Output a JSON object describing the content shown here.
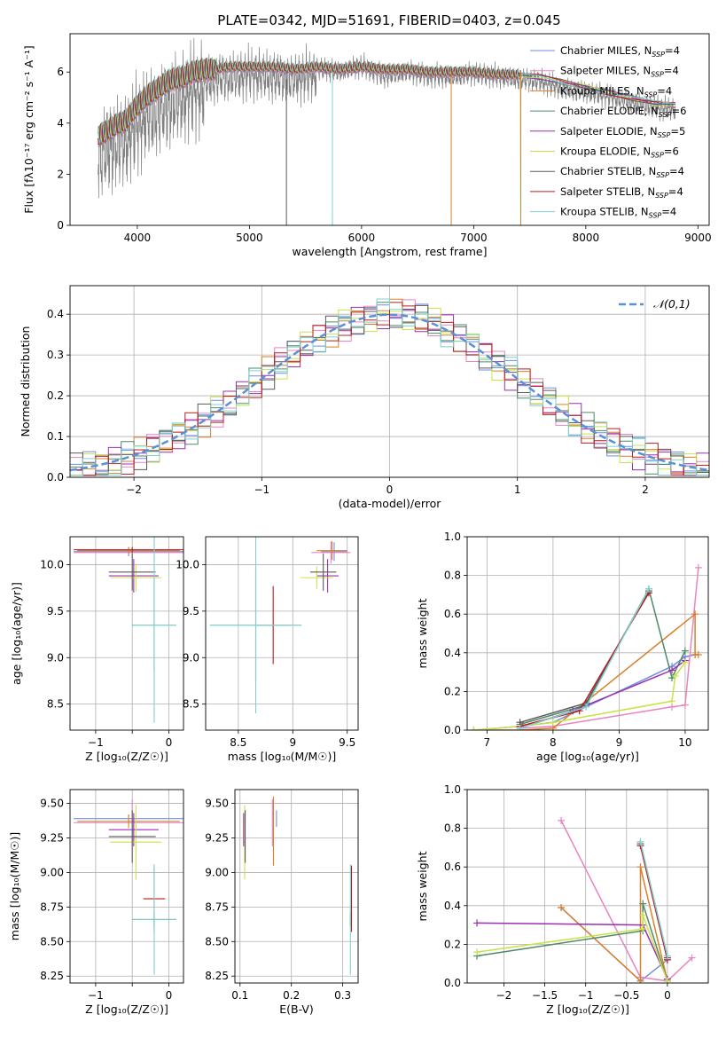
{
  "figure": {
    "title": "PLATE=0342, MJD=51691, FIBERID=0403, z=0.045"
  },
  "models": [
    {
      "name": "Chabrier MILES",
      "nssp": "4",
      "color": "#6f8fe0"
    },
    {
      "name": "Salpeter MILES",
      "nssp": "4",
      "color": "#e884c0"
    },
    {
      "name": "Kroupa MILES",
      "nssp": "4",
      "color": "#d9802a"
    },
    {
      "name": "Chabrier ELODIE",
      "nssp": "6",
      "color": "#4d8a68"
    },
    {
      "name": "Salpeter ELODIE",
      "nssp": "5",
      "color": "#9b2fb0"
    },
    {
      "name": "Kroupa ELODIE",
      "nssp": "6",
      "color": "#c9e24a"
    },
    {
      "name": "Chabrier STELIB",
      "nssp": "4",
      "color": "#5a5a5a"
    },
    {
      "name": "Salpeter STELIB",
      "nssp": "4",
      "color": "#b81c1c"
    },
    {
      "name": "Kroupa STELIB",
      "nssp": "4",
      "color": "#7fd0cc"
    }
  ],
  "chart_data": [
    {
      "id": "spectrum",
      "type": "line",
      "xlabel": "wavelength [Angstrom, rest frame]",
      "ylabel": "Flux [fλ10⁻¹⁷ erg cm⁻² s⁻¹ A⁻¹]",
      "xlim": [
        3400,
        9100
      ],
      "ylim": [
        0,
        7.5
      ],
      "xticks": [
        4000,
        5000,
        6000,
        7000,
        8000,
        9000
      ],
      "yticks": [
        0,
        2,
        4,
        6
      ],
      "grid": false,
      "legend": "right",
      "data_color": "#808080",
      "data_spectrum": {
        "x": [
          3650,
          3700,
          3800,
          3900,
          4000,
          4100,
          4200,
          4300,
          4400,
          4500,
          4600,
          4700,
          4800,
          4900,
          5000,
          5200,
          5400,
          5600,
          5800,
          6000,
          6200,
          6400,
          6600,
          6800,
          7000,
          7200,
          7400,
          7600,
          7800,
          8000,
          8200,
          8400,
          8600,
          8800
        ],
        "y": [
          3.3,
          3.6,
          3.8,
          4.0,
          4.6,
          5.0,
          5.2,
          5.5,
          5.7,
          5.9,
          6.0,
          6.1,
          6.2,
          6.2,
          6.3,
          6.2,
          6.1,
          6.3,
          6.2,
          6.4,
          6.0,
          6.2,
          6.0,
          6.0,
          6.1,
          6.0,
          5.9,
          5.8,
          5.5,
          5.4,
          5.2,
          5.0,
          4.8,
          4.7
        ]
      },
      "model_spectrum": {
        "x": [
          3650,
          3700,
          3800,
          3900,
          4000,
          4100,
          4200,
          4300,
          4400,
          4500,
          4600,
          4700,
          4800,
          4900,
          5000,
          5200,
          5400,
          5600,
          5800,
          6000,
          6200,
          6400,
          6600,
          6800,
          7000,
          7200,
          7400
        ],
        "y": [
          3.5,
          3.6,
          3.9,
          4.1,
          4.7,
          5.1,
          5.4,
          5.7,
          5.8,
          6.0,
          6.1,
          6.1,
          6.2,
          6.2,
          6.2,
          6.2,
          6.1,
          6.2,
          6.1,
          6.2,
          6.1,
          6.1,
          6.0,
          6.0,
          6.0,
          5.9,
          5.9
        ]
      },
      "model_spectrum_red_tail": {
        "x": [
          7400,
          7600,
          7800,
          8000,
          8200,
          8400,
          8600,
          8800
        ],
        "y": [
          5.9,
          5.8,
          5.6,
          5.4,
          5.2,
          5.0,
          4.8,
          4.7
        ]
      },
      "model_x_range_kroupa_miles": [
        3900,
        7420
      ],
      "dropouts": [
        5330,
        5740,
        6800,
        7420
      ]
    },
    {
      "id": "residuals",
      "type": "histogram",
      "xlabel": "(data-model)/error",
      "ylabel": "Normed distribution",
      "xlim": [
        -2.5,
        2.5
      ],
      "ylim": [
        0,
        0.47
      ],
      "xticks": [
        -2,
        -1,
        0,
        1,
        2
      ],
      "yticks": [
        0.0,
        0.1,
        0.2,
        0.3,
        0.4
      ],
      "grid": true,
      "legend": "top-right",
      "reference_curve": {
        "label": "𝒩(0,1)",
        "mean": 0,
        "sd": 1,
        "color": "#5b8fd8"
      },
      "bin_width": 0.1,
      "bin_start": -2.5
    },
    {
      "id": "age-vs-Z",
      "type": "errorbar",
      "xlabel": "Z [log₁₀(Z/Z☉)]",
      "ylabel": "age  [log₁₀(age/yr)]",
      "xlim": [
        -1.35,
        0.2
      ],
      "ylim": [
        8.22,
        10.3
      ],
      "xticks": [
        -1,
        -0.5,
        0
      ],
      "xtick_labels": [
        "−1",
        "",
        "0"
      ],
      "yticks": [
        8.5,
        9.0,
        9.5,
        10.0
      ],
      "grid": true,
      "points": [
        {
          "model": 0,
          "x": -0.55,
          "y": 10.14,
          "xerr": 0.75,
          "yerr": 0.05
        },
        {
          "model": 1,
          "x": -0.5,
          "y": 10.13,
          "xerr": 0.8,
          "yerr": 0.02
        },
        {
          "model": 2,
          "x": -0.55,
          "y": 10.15,
          "xerr": 0.7,
          "yerr": 0.04
        },
        {
          "model": 3,
          "x": -0.2,
          "y": 9.35,
          "xerr": 0.3,
          "yerr": 0.5
        },
        {
          "model": 4,
          "x": -0.48,
          "y": 9.88,
          "xerr": 0.34,
          "yerr": 0.18
        },
        {
          "model": 5,
          "x": -0.45,
          "y": 9.86,
          "xerr": 0.35,
          "yerr": 0.15
        },
        {
          "model": 6,
          "x": -0.5,
          "y": 9.92,
          "xerr": 0.32,
          "yerr": 0.2
        },
        {
          "model": 7,
          "x": -0.5,
          "y": 10.16,
          "xerr": 0.8,
          "yerr": 0.03
        },
        {
          "model": 8,
          "x": -0.2,
          "y": 9.35,
          "xerr": 0.3,
          "yerr": 1.05
        }
      ]
    },
    {
      "id": "age-vs-mass",
      "type": "errorbar",
      "xlabel": "mass [log₁₀(M/M☉)]",
      "ylabel": "",
      "xlim": [
        8.2,
        9.6
      ],
      "ylim": [
        8.22,
        10.3
      ],
      "xticks": [
        8.5,
        9.0,
        9.5
      ],
      "yticks": [
        8.5,
        9.0,
        9.5,
        10.0
      ],
      "grid": true,
      "points": [
        {
          "model": 0,
          "x": 9.38,
          "y": 10.14,
          "xerr": 0.12,
          "yerr": 0.1
        },
        {
          "model": 1,
          "x": 9.35,
          "y": 10.13,
          "xerr": 0.18,
          "yerr": 0.12
        },
        {
          "model": 2,
          "x": 9.36,
          "y": 10.15,
          "xerr": 0.14,
          "yerr": 0.1
        },
        {
          "model": 3,
          "x": 8.66,
          "y": 9.35,
          "xerr": 0.42,
          "yerr": 0.6
        },
        {
          "model": 4,
          "x": 9.32,
          "y": 9.88,
          "xerr": 0.1,
          "yerr": 0.18
        },
        {
          "model": 5,
          "x": 9.22,
          "y": 9.86,
          "xerr": 0.15,
          "yerr": 0.12
        },
        {
          "model": 6,
          "x": 9.28,
          "y": 9.92,
          "xerr": 0.12,
          "yerr": 0.2
        },
        {
          "model": 7,
          "x": 8.82,
          "y": 9.35,
          "xerr": 0.15,
          "yerr": 0.42
        },
        {
          "model": 8,
          "x": 8.66,
          "y": 9.35,
          "xerr": 0.42,
          "yerr": 0.95
        }
      ]
    },
    {
      "id": "weight-vs-age",
      "type": "line",
      "xlabel": "age  [log₁₀(age/yr)]",
      "ylabel": "mass weight",
      "xlim": [
        6.7,
        10.35
      ],
      "ylim": [
        0,
        1
      ],
      "xticks": [
        7,
        8,
        9,
        10
      ],
      "yticks": [
        0.0,
        0.2,
        0.4,
        0.6,
        0.8,
        1.0
      ],
      "grid": true,
      "series": [
        {
          "model": 0,
          "x": [
            6.8,
            7.5,
            8.0,
            9.8,
            10.0,
            10.15
          ],
          "y": [
            0.0,
            0.02,
            0.04,
            0.33,
            0.38,
            0.39
          ]
        },
        {
          "model": 1,
          "x": [
            7.5,
            8.0,
            9.8,
            10.0,
            10.2
          ],
          "y": [
            0.01,
            0.02,
            0.12,
            0.13,
            0.84
          ]
        },
        {
          "model": 2,
          "x": [
            6.8,
            7.5,
            8.0,
            10.15,
            10.15,
            10.2
          ],
          "y": [
            0.0,
            0.0,
            0.01,
            0.6,
            0.39,
            0.39
          ]
        },
        {
          "model": 3,
          "x": [
            7.5,
            8.5,
            9.45,
            9.8,
            10.0
          ],
          "y": [
            0.03,
            0.13,
            0.73,
            0.27,
            0.41
          ]
        },
        {
          "model": 4,
          "x": [
            7.5,
            8.3,
            9.8,
            10.0
          ],
          "y": [
            0.01,
            0.1,
            0.31,
            0.36
          ]
        },
        {
          "model": 5,
          "x": [
            6.8,
            7.5,
            8.0,
            9.8,
            9.85,
            10.0
          ],
          "y": [
            0.0,
            0.02,
            0.04,
            0.15,
            0.28,
            0.35
          ]
        },
        {
          "model": 6,
          "x": [
            7.5,
            8.5,
            9.45
          ],
          "y": [
            0.04,
            0.14,
            0.72
          ]
        },
        {
          "model": 7,
          "x": [
            7.5,
            8.4,
            9.45
          ],
          "y": [
            0.02,
            0.1,
            0.71
          ]
        },
        {
          "model": 8,
          "x": [
            7.5,
            8.5,
            9.45
          ],
          "y": [
            0.01,
            0.12,
            0.73
          ]
        }
      ]
    },
    {
      "id": "mass-vs-Z",
      "type": "errorbar",
      "xlabel": "Z [log₁₀(Z/Z☉)]",
      "ylabel": "mass [log₁₀(M/M☉)]",
      "xlim": [
        -1.35,
        0.2
      ],
      "ylim": [
        8.2,
        9.6
      ],
      "xticks": [
        -1,
        -0.5,
        0
      ],
      "xtick_labels": [
        "−1",
        "",
        "0"
      ],
      "yticks": [
        8.25,
        8.5,
        8.75,
        9.0,
        9.25,
        9.5
      ],
      "grid": true,
      "points": [
        {
          "model": 0,
          "x": -0.55,
          "y": 9.39,
          "xerr": 0.75,
          "yerr": 0.03
        },
        {
          "model": 1,
          "x": -0.5,
          "y": 9.36,
          "xerr": 0.8,
          "yerr": 0.17
        },
        {
          "model": 2,
          "x": -0.55,
          "y": 9.37,
          "xerr": 0.7,
          "yerr": 0.05
        },
        {
          "model": 3,
          "x": -0.2,
          "y": 8.66,
          "xerr": 0.3,
          "yerr": 0.05
        },
        {
          "model": 4,
          "x": -0.48,
          "y": 9.31,
          "xerr": 0.34,
          "yerr": 0.12
        },
        {
          "model": 5,
          "x": -0.45,
          "y": 9.22,
          "xerr": 0.35,
          "yerr": 0.27
        },
        {
          "model": 6,
          "x": -0.5,
          "y": 9.26,
          "xerr": 0.32,
          "yerr": 0.19
        },
        {
          "model": 7,
          "x": -0.2,
          "y": 8.81,
          "xerr": 0.15,
          "yerr": 0.24
        },
        {
          "model": 8,
          "x": -0.2,
          "y": 8.66,
          "xerr": 0.3,
          "yerr": 0.4
        }
      ]
    },
    {
      "id": "mass-vs-ebv",
      "type": "errorbar",
      "xlabel": "E(B-V)",
      "ylabel": "",
      "xlim": [
        0.09,
        0.33
      ],
      "ylim": [
        8.2,
        9.6
      ],
      "xticks": [
        0.1,
        0.2,
        0.3
      ],
      "yticks": [
        8.25,
        8.5,
        8.75,
        9.0,
        9.25,
        9.5
      ],
      "grid": true,
      "points": [
        {
          "model": 0,
          "x": 0.171,
          "y": 9.39,
          "xerr": 0.0,
          "yerr": 0.06
        },
        {
          "model": 1,
          "x": 0.163,
          "y": 9.36,
          "xerr": 0.0,
          "yerr": 0.17
        },
        {
          "model": 2,
          "x": 0.165,
          "y": 9.3,
          "xerr": 0.0,
          "yerr": 0.25
        },
        {
          "model": 3,
          "x": 0.315,
          "y": 8.66,
          "xerr": 0.0,
          "yerr": 0.05
        },
        {
          "model": 4,
          "x": 0.107,
          "y": 9.31,
          "xerr": 0.0,
          "yerr": 0.12
        },
        {
          "model": 5,
          "x": 0.109,
          "y": 9.22,
          "xerr": 0.0,
          "yerr": 0.27
        },
        {
          "model": 6,
          "x": 0.11,
          "y": 9.26,
          "xerr": 0.0,
          "yerr": 0.19
        },
        {
          "model": 7,
          "x": 0.317,
          "y": 8.81,
          "xerr": 0.0,
          "yerr": 0.24
        },
        {
          "model": 8,
          "x": 0.315,
          "y": 8.66,
          "xerr": 0.0,
          "yerr": 0.4
        }
      ]
    },
    {
      "id": "weight-vs-Z",
      "type": "line",
      "xlabel": "Z [log₁₀(Z/Z☉)]",
      "ylabel": "mass weight",
      "xlim": [
        -2.45,
        0.5
      ],
      "ylim": [
        0,
        1
      ],
      "xticks": [
        -2.0,
        -1.5,
        -1.0,
        -0.5,
        0.0
      ],
      "yticks": [
        0.0,
        0.2,
        0.4,
        0.6,
        0.8,
        1.0
      ],
      "grid": true,
      "series": [
        {
          "model": 0,
          "x": [
            -1.3,
            -0.33,
            0.0
          ],
          "y": [
            0.39,
            0.01,
            0.12
          ]
        },
        {
          "model": 1,
          "x": [
            -1.3,
            -0.33,
            0.0,
            0.3
          ],
          "y": [
            0.84,
            0.03,
            0.01,
            0.13
          ]
        },
        {
          "model": 2,
          "x": [
            -1.3,
            -0.33,
            -0.33,
            0.0
          ],
          "y": [
            0.39,
            0.01,
            0.6,
            0.01
          ]
        },
        {
          "model": 3,
          "x": [
            -2.33,
            -0.3,
            -0.3,
            0.0
          ],
          "y": [
            0.14,
            0.27,
            0.41,
            0.01
          ]
        },
        {
          "model": 4,
          "x": [
            -2.33,
            -0.3,
            0.0
          ],
          "y": [
            0.31,
            0.3,
            0.02
          ]
        },
        {
          "model": 5,
          "x": [
            -2.33,
            -0.3,
            -0.3,
            0.0
          ],
          "y": [
            0.16,
            0.28,
            0.35,
            0.01
          ]
        },
        {
          "model": 6,
          "x": [
            -0.33,
            0.0
          ],
          "y": [
            0.72,
            0.13
          ]
        },
        {
          "model": 7,
          "x": [
            -0.33,
            0.0
          ],
          "y": [
            0.71,
            0.12
          ]
        },
        {
          "model": 8,
          "x": [
            -0.33,
            0.0
          ],
          "y": [
            0.73,
            0.14
          ]
        }
      ]
    }
  ]
}
